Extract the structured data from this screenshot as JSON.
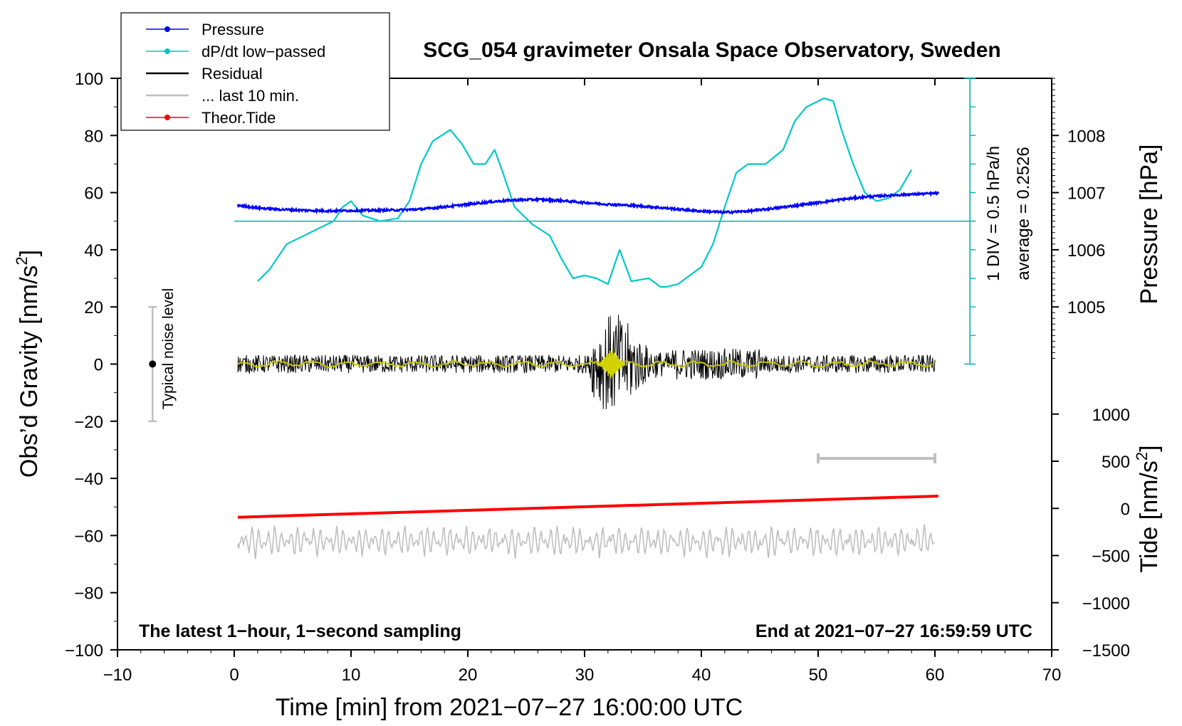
{
  "chart_data": {
    "type": "line",
    "title": "SCG_054 gravimeter Onsala Space Observatory, Sweden",
    "xlabel": "Time [min] from 2021−07−27 16:00:00 UTC",
    "ylabel": "Obs’d Gravity [nm/s²]",
    "ylabel_main": "Obs’d Gravity [nm/s",
    "ylabel_sup": "2",
    "ylabel_end": "]",
    "xlim": [
      -10,
      70
    ],
    "ylim": [
      -100,
      100
    ],
    "x_ticks": [
      -10,
      0,
      10,
      20,
      30,
      40,
      50,
      60,
      70
    ],
    "x_tick_labels": [
      "−10",
      "0",
      "10",
      "20",
      "30",
      "40",
      "50",
      "60",
      "70"
    ],
    "y_ticks": [
      -100,
      -80,
      -60,
      -40,
      -20,
      0,
      20,
      40,
      60,
      80,
      100
    ],
    "y_tick_labels": [
      "−100",
      "−80",
      "−60",
      "−40",
      "−20",
      "0",
      "20",
      "40",
      "60",
      "80",
      "100"
    ],
    "pressure_axis": {
      "label": "Pressure [hPa]",
      "ticks": [
        1005,
        1006,
        1007,
        1008
      ],
      "tick_labels": [
        "1005",
        "1006",
        "1007",
        "1008"
      ],
      "gravity_equiv": [
        20,
        40,
        60,
        80
      ]
    },
    "tide_axis": {
      "label_main": "Tide [nm/s",
      "label_sup": "2",
      "label_end": "]",
      "ticks": [
        1000,
        500,
        0,
        -500,
        -1000,
        -1500
      ],
      "tick_labels": [
        "1000",
        "500",
        "0",
        "−500",
        "−1000",
        "−1500"
      ],
      "gravity_equiv": [
        -17.5,
        -34,
        -50.5,
        -67,
        -83.5,
        -100
      ]
    },
    "dpdt_scale": {
      "label1": "1 DIV = 0.5 hPa/h",
      "label2": "average = 0.2526",
      "x": 63,
      "ylim": [
        0,
        100
      ],
      "average_level": 50
    },
    "noise_bar": {
      "label": "Typical noise level",
      "x": -7,
      "center": 0,
      "range": [
        -20,
        20
      ]
    },
    "last10_bar": {
      "x_range": [
        50,
        60
      ],
      "y": -33
    },
    "series": [
      {
        "name": "Pressure",
        "color": "#0000ff",
        "x": [
          0.3,
          2,
          4,
          6,
          8,
          10,
          12,
          14,
          16,
          18,
          20,
          22,
          24,
          26,
          28,
          30,
          32,
          34,
          36,
          38,
          40,
          42,
          44,
          46,
          48,
          50,
          52,
          54,
          56,
          58,
          60.3
        ],
        "y": [
          55.6,
          54.6,
          54.1,
          53.8,
          53.6,
          53.7,
          53.8,
          53.9,
          54.2,
          55.0,
          55.9,
          56.8,
          57.4,
          57.6,
          57.2,
          56.5,
          55.9,
          55.5,
          54.9,
          54.2,
          53.5,
          53.1,
          53.5,
          54.4,
          55.4,
          56.5,
          57.6,
          58.5,
          59.0,
          59.4,
          59.8
        ]
      },
      {
        "name": "dP/dt low−passed",
        "color": "#00c8c8",
        "x": [
          2,
          3,
          4.5,
          6,
          7.5,
          8.5,
          9.3,
          10,
          11,
          12.5,
          14,
          15,
          16,
          17,
          18.5,
          19.5,
          20.5,
          21.5,
          22.3,
          23,
          24,
          25.5,
          27,
          28,
          29,
          30,
          31,
          32,
          33,
          34,
          35.5,
          36.5,
          37,
          38,
          40,
          41,
          42,
          43,
          44,
          45.5,
          47,
          48,
          49,
          50.5,
          51.3,
          52,
          53,
          54,
          55,
          56,
          57,
          58
        ],
        "y": [
          29,
          33,
          42,
          45,
          48,
          50,
          55,
          57,
          52,
          50,
          51,
          57,
          70,
          78,
          82,
          77,
          70,
          70,
          75,
          67,
          55,
          49,
          45,
          37,
          30,
          31,
          30,
          28,
          40,
          29,
          30,
          27,
          27,
          28,
          34,
          42,
          55,
          67,
          70,
          70,
          75,
          85,
          90,
          93,
          92,
          82,
          70,
          60,
          57,
          58,
          61,
          68
        ]
      },
      {
        "name": "Residual",
        "color": "#000000",
        "x": [
          0.3,
          60
        ],
        "y": [
          0,
          0
        ],
        "notes": "1-second residual gravity, typical amplitude about ±4 nm/s², burst up to ±17 nm/s² near minute 31–36"
      },
      {
        "name": "... last 10 min.",
        "color": "#bfbfbf",
        "x": [
          0.3,
          60
        ],
        "y": [
          -62,
          -62
        ],
        "notes": "band of oscillations around −62 nm/s² with amplitude about 5 nm/s²"
      },
      {
        "name": "Theor.Tide",
        "color": "#ff0000",
        "x": [
          0.3,
          60.3
        ],
        "y": [
          -53.6,
          -46.2
        ]
      }
    ],
    "annotations": {
      "bottom_left": "The latest 1−hour, 1−second sampling",
      "bottom_right": "End at 2021−07−27 16:59:59 UTC"
    },
    "legend": {
      "position": "top-left",
      "entries": [
        {
          "label": "Pressure",
          "color": "#0000ff",
          "marker": true
        },
        {
          "label": "dP/dt low−passed",
          "color": "#00c8c8",
          "marker": true
        },
        {
          "label": "Residual",
          "color": "#000000",
          "marker": false
        },
        {
          "label": "... last 10 min.",
          "color": "#bfbfbf",
          "marker": false
        },
        {
          "label": "Theor.Tide",
          "color": "#ff0000",
          "marker": true
        }
      ]
    }
  }
}
